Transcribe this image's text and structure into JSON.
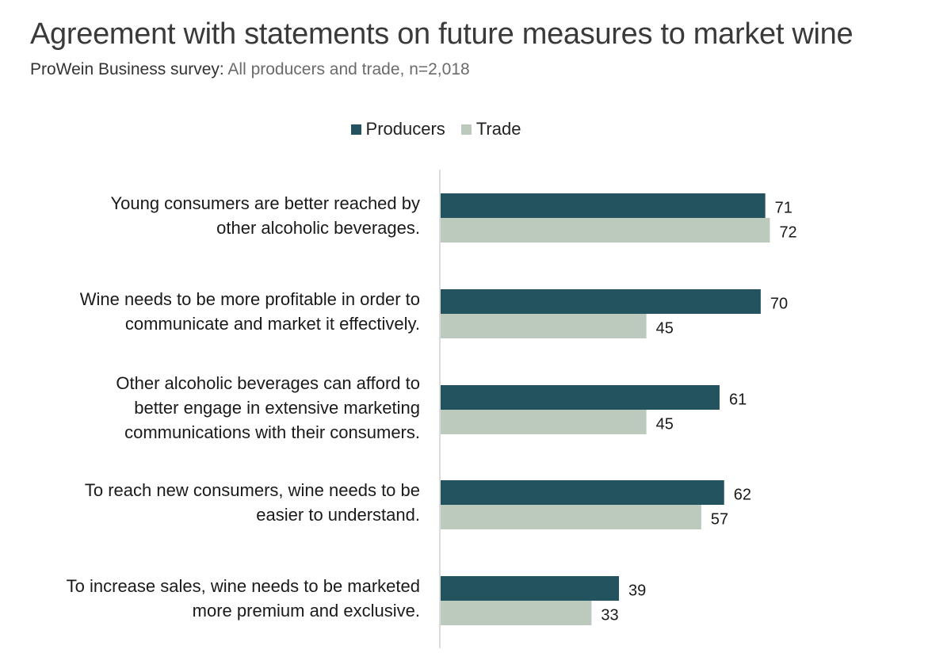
{
  "title": "Agreement with statements on future measures to market wine",
  "subtitle": {
    "prefix": "ProWein Business survey:",
    "rest": " All producers and trade, n=2,018"
  },
  "colors": {
    "producers": "#23535f",
    "trade": "#bccabd",
    "axis": "#d0d0d0"
  },
  "chart_data": {
    "type": "bar",
    "orientation": "horizontal",
    "title": "Agreement with statements on future measures to market wine",
    "subtitle": "ProWein Business survey: All producers and trade, n=2,018",
    "legend_position": "top",
    "grid": false,
    "xlim": [
      0,
      75
    ],
    "categories": [
      [
        "Young consumers are better reached by",
        "other alcoholic beverages."
      ],
      [
        "Wine needs to be more profitable in order to",
        "communicate and market it effectively."
      ],
      [
        "Other alcoholic beverages can afford to",
        "better engage in extensive marketing",
        "communications with their consumers."
      ],
      [
        "To reach new consumers, wine needs to be",
        "easier to understand."
      ],
      [
        "To increase sales, wine needs to be marketed",
        "more premium and exclusive."
      ]
    ],
    "series": [
      {
        "name": "Producers",
        "values": [
          71,
          70,
          61,
          62,
          39
        ]
      },
      {
        "name": "Trade",
        "values": [
          72,
          45,
          45,
          57,
          33
        ]
      }
    ]
  }
}
